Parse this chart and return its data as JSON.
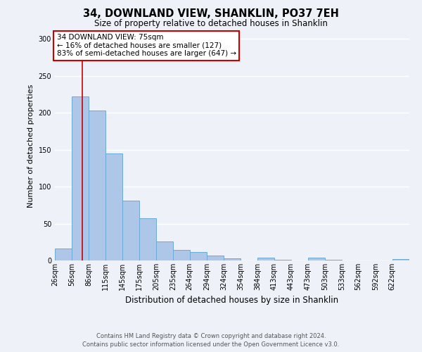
{
  "title": "34, DOWNLAND VIEW, SHANKLIN, PO37 7EH",
  "subtitle": "Size of property relative to detached houses in Shanklin",
  "xlabel": "Distribution of detached houses by size in Shanklin",
  "ylabel": "Number of detached properties",
  "bar_labels": [
    "26sqm",
    "56sqm",
    "86sqm",
    "115sqm",
    "145sqm",
    "175sqm",
    "205sqm",
    "235sqm",
    "264sqm",
    "294sqm",
    "324sqm",
    "354sqm",
    "384sqm",
    "413sqm",
    "443sqm",
    "473sqm",
    "503sqm",
    "533sqm",
    "562sqm",
    "592sqm",
    "622sqm"
  ],
  "bar_values": [
    16,
    222,
    203,
    145,
    81,
    57,
    26,
    14,
    11,
    7,
    3,
    0,
    4,
    1,
    0,
    4,
    1,
    0,
    0,
    0,
    2
  ],
  "bar_color": "#aec6e8",
  "bar_edge_color": "#6aaad4",
  "ylim": [
    0,
    310
  ],
  "yticks": [
    0,
    50,
    100,
    150,
    200,
    250,
    300
  ],
  "bin_edges_left": [
    26,
    56,
    86,
    115,
    145,
    175,
    205,
    235,
    264,
    294,
    324,
    354,
    384,
    413,
    443,
    473,
    503,
    533,
    562,
    592,
    622
  ],
  "property_line_x": 75,
  "property_line_color": "#cc0000",
  "annotation_title": "34 DOWNLAND VIEW: 75sqm",
  "annotation_line1": "← 16% of detached houses are smaller (127)",
  "annotation_line2": "83% of semi-detached houses are larger (647) →",
  "annotation_box_color": "#ffffff",
  "annotation_box_edge": "#cc0000",
  "footer_line1": "Contains HM Land Registry data © Crown copyright and database right 2024.",
  "footer_line2": "Contains public sector information licensed under the Open Government Licence v3.0.",
  "background_color": "#eef2f8",
  "grid_color": "#ffffff",
  "title_fontsize": 10.5,
  "subtitle_fontsize": 8.5,
  "ylabel_fontsize": 8,
  "xlabel_fontsize": 8.5,
  "tick_fontsize": 7,
  "annotation_fontsize": 7.5,
  "footer_fontsize": 6
}
